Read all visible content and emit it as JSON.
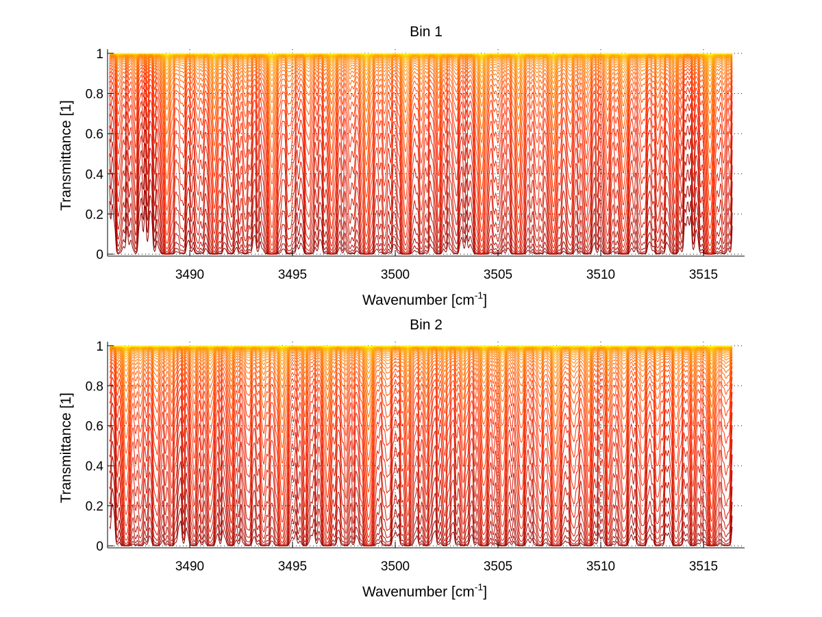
{
  "figure": {
    "background": "#ffffff"
  },
  "chart_data": [
    {
      "type": "line",
      "title": "Bin 1",
      "xlabel": "Wavenumber [cm",
      "xlabel_superscript": "-1",
      "xlabel_suffix": "]",
      "ylabel": "Transmittance [1]",
      "xlim": [
        3486,
        3517
      ],
      "ylim": [
        -0.01,
        1.02
      ],
      "xticks": [
        3490,
        3495,
        3500,
        3505,
        3510,
        3515
      ],
      "xtick_labels": [
        "3490",
        "3495",
        "3500",
        "3505",
        "3510",
        "3515"
      ],
      "yticks": [
        0,
        0.2,
        0.4,
        0.6,
        0.8,
        1
      ],
      "ytick_labels": [
        "0",
        "0.2",
        "0.4",
        "0.6",
        "0.8",
        "1"
      ],
      "grid": true,
      "legend": "none",
      "x_data_range": [
        3486.1,
        3516.4
      ],
      "n_curves": 42,
      "colormap": [
        "#8b0000",
        "#c81000",
        "#ff2a00",
        "#ff6a00",
        "#ff9a00",
        "#ffd000",
        "#ffff30"
      ],
      "absorption_lines": [
        {
          "center": 3486.6,
          "strength": 0.35
        },
        {
          "center": 3487.3,
          "strength": 0.25
        },
        {
          "center": 3488.9,
          "strength": 1.6
        },
        {
          "center": 3489.6,
          "strength": 0.35
        },
        {
          "center": 3490.4,
          "strength": 0.45
        },
        {
          "center": 3491.2,
          "strength": 1.2
        },
        {
          "center": 3492.0,
          "strength": 0.45
        },
        {
          "center": 3492.7,
          "strength": 0.55
        },
        {
          "center": 3494.0,
          "strength": 1.8
        },
        {
          "center": 3494.9,
          "strength": 0.5
        },
        {
          "center": 3495.8,
          "strength": 0.7
        },
        {
          "center": 3496.9,
          "strength": 1.1
        },
        {
          "center": 3497.8,
          "strength": 0.4
        },
        {
          "center": 3498.6,
          "strength": 1.7
        },
        {
          "center": 3499.5,
          "strength": 0.45
        },
        {
          "center": 3500.5,
          "strength": 1.4
        },
        {
          "center": 3501.3,
          "strength": 0.5
        },
        {
          "center": 3502.1,
          "strength": 0.6
        },
        {
          "center": 3502.9,
          "strength": 0.4
        },
        {
          "center": 3504.2,
          "strength": 1.9
        },
        {
          "center": 3505.0,
          "strength": 0.5
        },
        {
          "center": 3506.0,
          "strength": 1.6
        },
        {
          "center": 3506.9,
          "strength": 0.5
        },
        {
          "center": 3507.7,
          "strength": 1.5
        },
        {
          "center": 3508.5,
          "strength": 0.6
        },
        {
          "center": 3509.3,
          "strength": 0.7
        },
        {
          "center": 3510.3,
          "strength": 0.7
        },
        {
          "center": 3511.1,
          "strength": 1.2
        },
        {
          "center": 3512.0,
          "strength": 0.5
        },
        {
          "center": 3512.8,
          "strength": 0.55
        },
        {
          "center": 3513.6,
          "strength": 0.6
        },
        {
          "center": 3515.3,
          "strength": 1.8
        },
        {
          "center": 3516.0,
          "strength": 0.4
        }
      ]
    },
    {
      "type": "line",
      "title": "Bin 2",
      "xlabel": "Wavenumber [cm",
      "xlabel_superscript": "-1",
      "xlabel_suffix": "]",
      "ylabel": "Transmittance [1]",
      "xlim": [
        3486,
        3517
      ],
      "ylim": [
        -0.01,
        1.02
      ],
      "xticks": [
        3490,
        3495,
        3500,
        3505,
        3510,
        3515
      ],
      "xtick_labels": [
        "3490",
        "3495",
        "3500",
        "3505",
        "3510",
        "3515"
      ],
      "yticks": [
        0,
        0.2,
        0.4,
        0.6,
        0.8,
        1
      ],
      "ytick_labels": [
        "0",
        "0.2",
        "0.4",
        "0.6",
        "0.8",
        "1"
      ],
      "grid": true,
      "legend": "none",
      "x_data_range": [
        3486.1,
        3516.4
      ],
      "n_curves": 42,
      "colormap": [
        "#8b0000",
        "#c81000",
        "#ff2a00",
        "#ff6a00",
        "#ff9a00",
        "#ffd000",
        "#ffff30"
      ],
      "absorption_lines": [
        {
          "center": 3486.9,
          "strength": 1.3
        },
        {
          "center": 3487.6,
          "strength": 0.5
        },
        {
          "center": 3488.4,
          "strength": 0.6
        },
        {
          "center": 3489.1,
          "strength": 0.55
        },
        {
          "center": 3490.2,
          "strength": 0.6
        },
        {
          "center": 3491.0,
          "strength": 0.7
        },
        {
          "center": 3492.0,
          "strength": 0.6
        },
        {
          "center": 3492.8,
          "strength": 0.5
        },
        {
          "center": 3493.6,
          "strength": 0.7
        },
        {
          "center": 3494.5,
          "strength": 1.5
        },
        {
          "center": 3495.6,
          "strength": 0.5
        },
        {
          "center": 3496.7,
          "strength": 1.2
        },
        {
          "center": 3497.6,
          "strength": 0.5
        },
        {
          "center": 3498.7,
          "strength": 1.8
        },
        {
          "center": 3499.6,
          "strength": 0.5
        },
        {
          "center": 3500.6,
          "strength": 0.9
        },
        {
          "center": 3501.5,
          "strength": 0.6
        },
        {
          "center": 3502.4,
          "strength": 0.55
        },
        {
          "center": 3503.3,
          "strength": 0.7
        },
        {
          "center": 3504.3,
          "strength": 1.0
        },
        {
          "center": 3505.2,
          "strength": 1.0
        },
        {
          "center": 3506.1,
          "strength": 0.8
        },
        {
          "center": 3507.0,
          "strength": 0.6
        },
        {
          "center": 3507.8,
          "strength": 1.4
        },
        {
          "center": 3508.7,
          "strength": 0.6
        },
        {
          "center": 3509.4,
          "strength": 0.9
        },
        {
          "center": 3510.4,
          "strength": 0.6
        },
        {
          "center": 3511.1,
          "strength": 0.7
        },
        {
          "center": 3512.0,
          "strength": 0.6
        },
        {
          "center": 3512.8,
          "strength": 0.55
        },
        {
          "center": 3513.7,
          "strength": 0.7
        },
        {
          "center": 3514.5,
          "strength": 0.6
        },
        {
          "center": 3515.4,
          "strength": 1.3
        },
        {
          "center": 3516.1,
          "strength": 0.5
        }
      ]
    }
  ]
}
